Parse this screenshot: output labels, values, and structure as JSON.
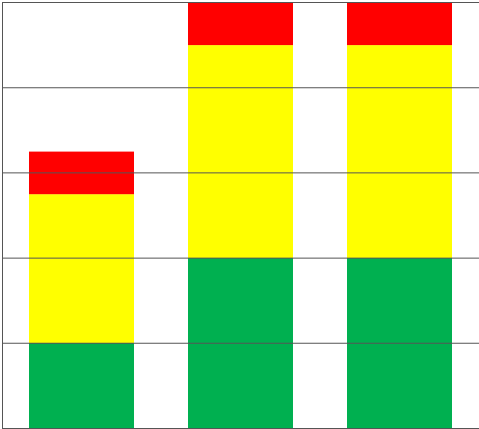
{
  "chart_data": {
    "type": "bar",
    "stacked": true,
    "categories": [
      null,
      null,
      null
    ],
    "series": [
      {
        "color": "#00b050",
        "values": [
          1,
          2,
          2
        ]
      },
      {
        "color": "#ffff00",
        "values": [
          1.75,
          2.5,
          2.5
        ]
      },
      {
        "color": "#ff0000",
        "values": [
          0.5,
          0.5,
          0.5
        ]
      }
    ],
    "ylim": [
      0,
      5
    ],
    "yticks": [
      0,
      1,
      2,
      3,
      4,
      5
    ],
    "grid": true
  }
}
